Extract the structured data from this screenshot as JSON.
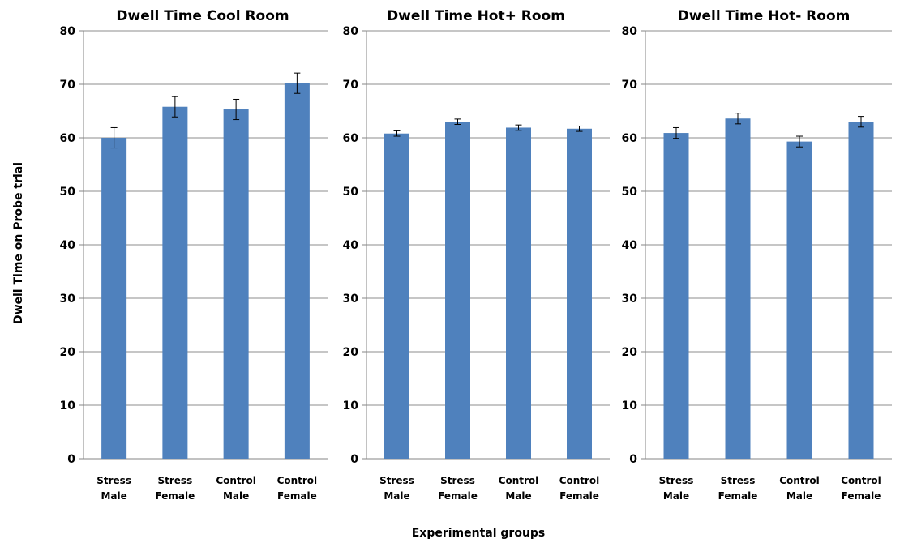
{
  "chart_data": [
    {
      "type": "bar",
      "title": "Dwell Time Cool Room",
      "categories": [
        [
          "Stress",
          "Male"
        ],
        [
          "Stress",
          "Female"
        ],
        [
          "Control",
          "Male"
        ],
        [
          "Control",
          "Female"
        ]
      ],
      "values": [
        60.0,
        65.8,
        65.3,
        70.2
      ],
      "errors": [
        1.9,
        1.9,
        1.9,
        1.9
      ],
      "ylim": [
        0,
        80
      ],
      "yticks": [
        "0",
        "10",
        "20",
        "30",
        "40",
        "50",
        "60",
        "70",
        "80"
      ],
      "bar_color": "#4f81bd"
    },
    {
      "type": "bar",
      "title": "Dwell Time Hot+ Room",
      "categories": [
        [
          "Stress",
          "Male"
        ],
        [
          "Stress",
          "Female"
        ],
        [
          "Control",
          "Male"
        ],
        [
          "Control",
          "Female"
        ]
      ],
      "values": [
        60.8,
        63.0,
        61.9,
        61.7
      ],
      "errors": [
        0.5,
        0.5,
        0.5,
        0.5
      ],
      "ylim": [
        0,
        80
      ],
      "yticks": [
        "0",
        "10",
        "20",
        "30",
        "40",
        "50",
        "60",
        "70",
        "80"
      ],
      "bar_color": "#4f81bd"
    },
    {
      "type": "bar",
      "title": "Dwell Time Hot- Room",
      "categories": [
        [
          "Stress",
          "Male"
        ],
        [
          "Stress",
          "Female"
        ],
        [
          "Control",
          "Male"
        ],
        [
          "Control",
          "Female"
        ]
      ],
      "values": [
        60.9,
        63.6,
        59.3,
        63.0
      ],
      "errors": [
        1.0,
        1.0,
        1.0,
        1.0
      ],
      "ylim": [
        0,
        80
      ],
      "yticks": [
        "0",
        "10",
        "20",
        "30",
        "40",
        "50",
        "60",
        "70",
        "80"
      ],
      "bar_color": "#4f81bd"
    }
  ],
  "figure": {
    "ylabel": "Dwell Time on Probe trial",
    "xlabel": "Experimental groups",
    "grid": true,
    "gridline_color": "#8c8c8c",
    "errorbar_color": "#000000"
  }
}
